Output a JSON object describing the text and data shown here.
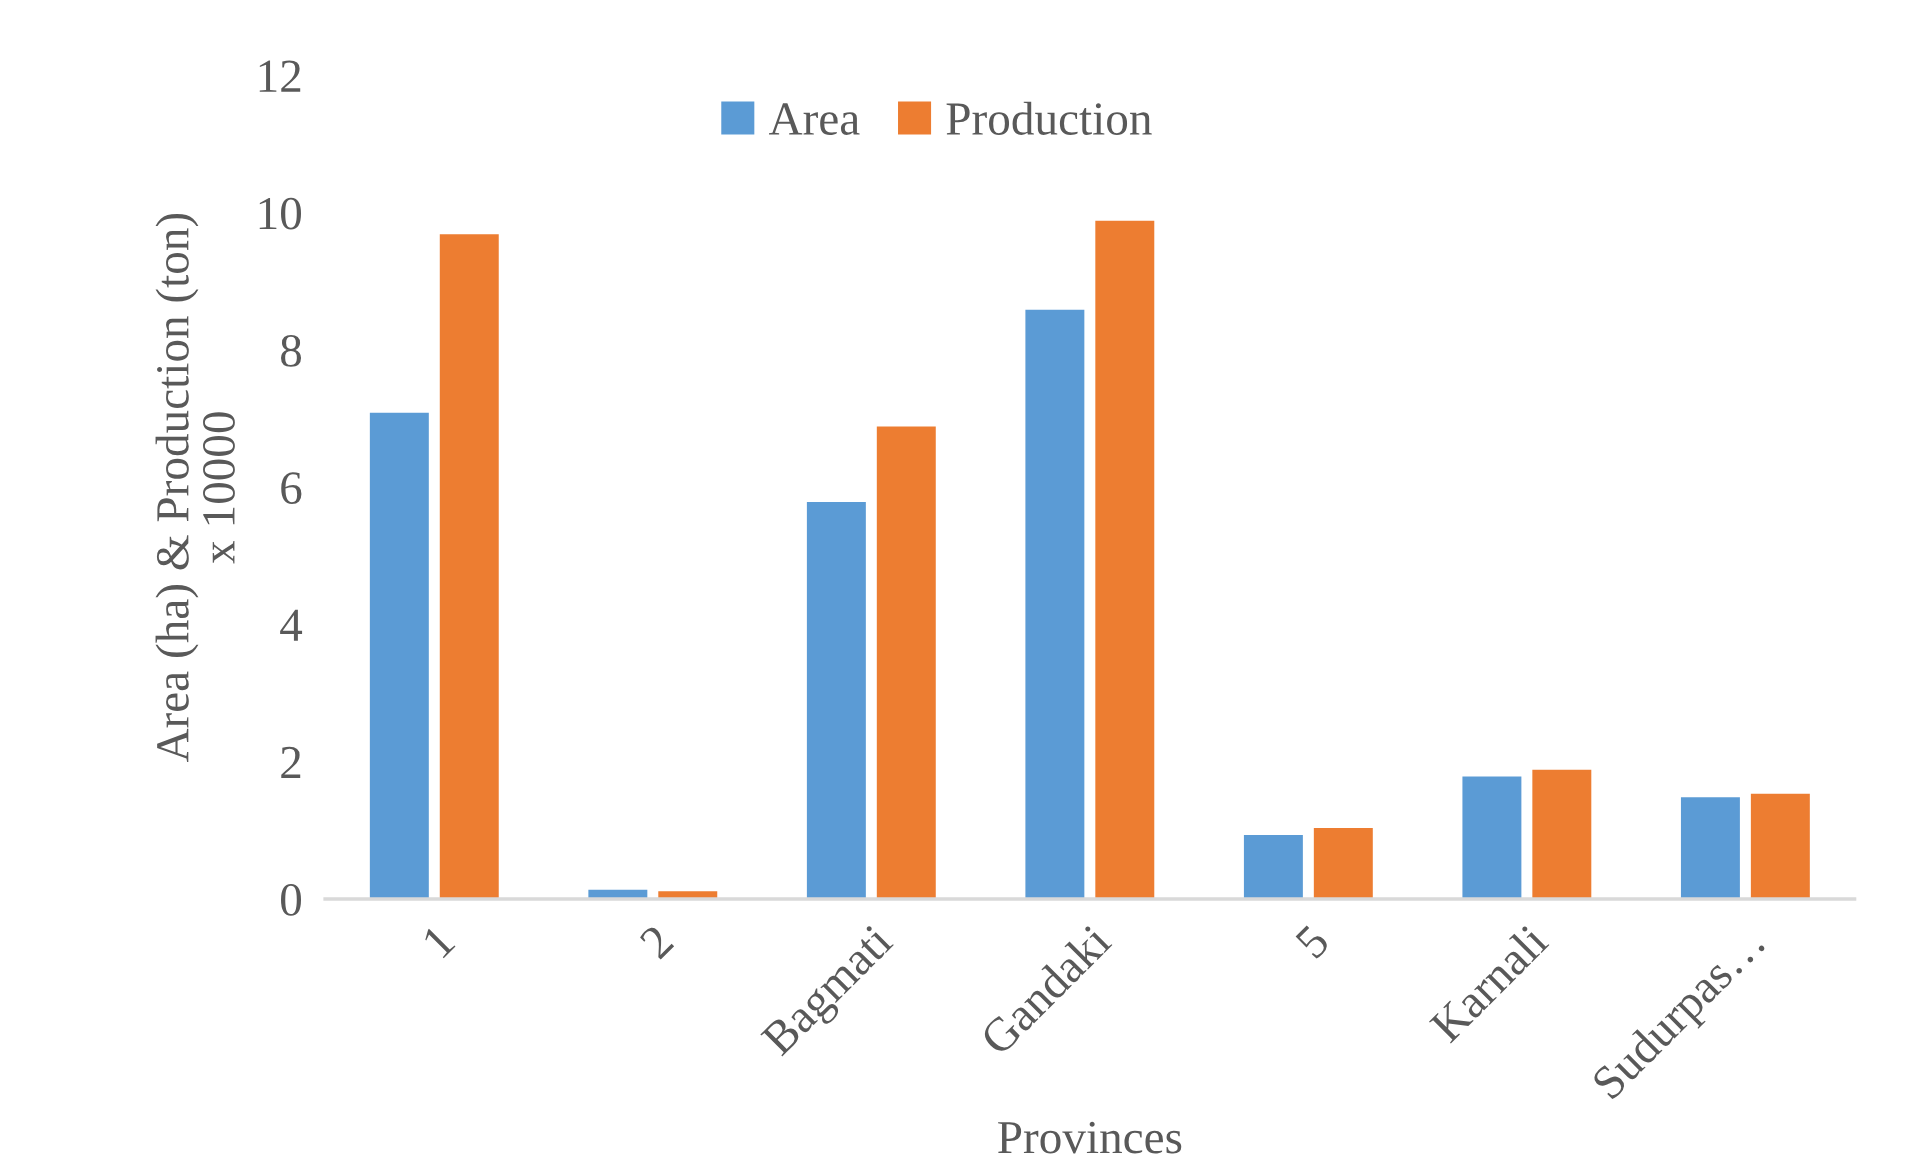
{
  "chart_data": {
    "type": "bar",
    "xlabel": "Provinces",
    "ylabel": "Area (ha) & Production (ton)\nx 10000",
    "categories": [
      "1",
      "2",
      "Bagmati",
      "Gandaki",
      "5",
      "Karnali",
      "Sudurpas…"
    ],
    "series": [
      {
        "name": "Area",
        "color": "#5b9bd5",
        "values": [
          7.1,
          0.15,
          5.8,
          8.6,
          0.95,
          1.8,
          1.5
        ]
      },
      {
        "name": "Production",
        "color": "#ed7d31",
        "values": [
          9.7,
          0.13,
          6.9,
          9.9,
          1.05,
          1.9,
          1.55
        ]
      }
    ],
    "ylim": [
      0,
      12
    ],
    "yticks": [
      0,
      2,
      4,
      6,
      8,
      10,
      12
    ],
    "grid": false,
    "legend": "top"
  }
}
